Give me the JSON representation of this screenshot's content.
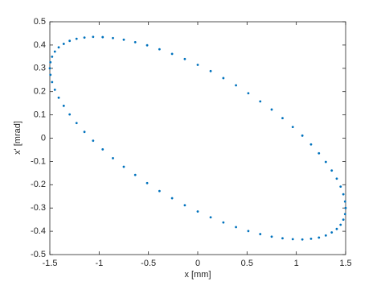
{
  "chart_data": {
    "type": "scatter",
    "xlabel": "x [mm]",
    "ylabel": "x' [mrad]",
    "x": [
      1.5,
      1.494,
      1.477,
      1.449,
      1.41,
      1.359,
      1.299,
      1.229,
      1.149,
      1.061,
      0.964,
      0.86,
      0.75,
      0.634,
      0.513,
      0.388,
      0.26,
      0.131,
      0,
      -0.131,
      -0.26,
      -0.388,
      -0.513,
      -0.634,
      -0.75,
      -0.86,
      -0.964,
      -1.061,
      -1.149,
      -1.229,
      -1.299,
      -1.359,
      -1.41,
      -1.449,
      -1.477,
      -1.494,
      -1.5,
      -1.494,
      -1.477,
      -1.449,
      -1.41,
      -1.359,
      -1.299,
      -1.229,
      -1.149,
      -1.061,
      -0.964,
      -0.86,
      -0.75,
      -0.634,
      -0.513,
      -0.388,
      -0.26,
      -0.131,
      0,
      0.131,
      0.26,
      0.388,
      0.513,
      0.634,
      0.75,
      0.86,
      0.964,
      1.061,
      1.149,
      1.229,
      1.299,
      1.359,
      1.41,
      1.449,
      1.477,
      1.494
    ],
    "values": [
      -0.3,
      -0.272,
      -0.241,
      -0.208,
      -0.174,
      -0.139,
      -0.102,
      -0.065,
      -0.027,
      0.011,
      0.048,
      0.086,
      0.123,
      0.158,
      0.193,
      0.227,
      0.258,
      0.288,
      0.315,
      0.34,
      0.362,
      0.382,
      0.399,
      0.412,
      0.423,
      0.43,
      0.434,
      0.435,
      0.432,
      0.427,
      0.418,
      0.405,
      0.39,
      0.372,
      0.35,
      0.326,
      0.3,
      0.272,
      0.241,
      0.208,
      0.174,
      0.139,
      0.102,
      0.065,
      0.027,
      -0.011,
      -0.048,
      -0.086,
      -0.123,
      -0.158,
      -0.193,
      -0.227,
      -0.258,
      -0.288,
      -0.315,
      -0.34,
      -0.362,
      -0.382,
      -0.399,
      -0.412,
      -0.423,
      -0.43,
      -0.434,
      -0.435,
      -0.432,
      -0.427,
      -0.418,
      -0.405,
      -0.39,
      -0.372,
      -0.35,
      -0.326
    ],
    "color": "#0072bd",
    "xlim": [
      -1.5,
      1.5
    ],
    "xticks": [
      -1.5,
      -1,
      -0.5,
      0,
      0.5,
      1,
      1.5
    ],
    "ylim": [
      -0.5,
      0.5
    ],
    "yticks": [
      -0.5,
      -0.4,
      -0.3,
      -0.2,
      -0.1,
      0,
      0.1,
      0.2,
      0.3,
      0.4,
      0.5
    ],
    "grid": false
  }
}
